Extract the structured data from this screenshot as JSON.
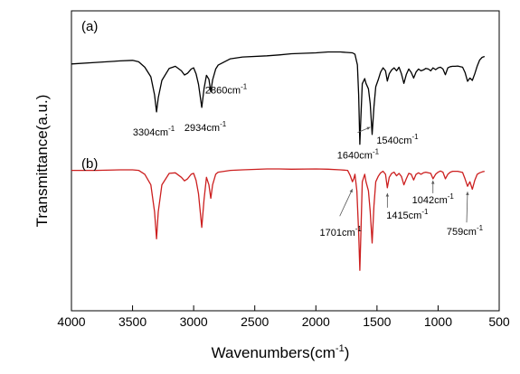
{
  "chart_data": {
    "type": "line",
    "xlabel": "Wavenumbers(cm",
    "xlabel_sup": "-1",
    "xlabel_close": ")",
    "ylabel": "Transmittance(a.u.)",
    "xlim": [
      4000,
      500
    ],
    "ylim": [
      0,
      1
    ],
    "x_reversed": true,
    "grid": false,
    "x_ticks": [
      4000,
      3500,
      3000,
      2500,
      2000,
      1500,
      1000,
      500
    ],
    "series": [
      {
        "label": "(a)",
        "color": "#000000",
        "x": [
          4000,
          3800,
          3600,
          3500,
          3450,
          3400,
          3350,
          3320,
          3304,
          3290,
          3260,
          3200,
          3150,
          3100,
          3075,
          3050,
          3020,
          3000,
          2980,
          2960,
          2934,
          2915,
          2895,
          2875,
          2860,
          2845,
          2820,
          2800,
          2700,
          2600,
          2400,
          2300,
          2200,
          2000,
          1900,
          1800,
          1700,
          1680,
          1660,
          1650,
          1640,
          1632,
          1620,
          1600,
          1590,
          1570,
          1555,
          1540,
          1525,
          1510,
          1490,
          1470,
          1450,
          1430,
          1415,
          1400,
          1380,
          1360,
          1340,
          1320,
          1300,
          1280,
          1260,
          1240,
          1220,
          1200,
          1180,
          1160,
          1140,
          1120,
          1100,
          1080,
          1060,
          1042,
          1020,
          1000,
          980,
          960,
          940,
          920,
          900,
          880,
          860,
          840,
          820,
          800,
          780,
          759,
          740,
          720,
          700,
          680,
          660,
          640,
          620
        ],
        "y": [
          0.823,
          0.828,
          0.833,
          0.835,
          0.83,
          0.812,
          0.78,
          0.72,
          0.663,
          0.71,
          0.768,
          0.808,
          0.815,
          0.8,
          0.786,
          0.792,
          0.806,
          0.81,
          0.79,
          0.755,
          0.678,
          0.74,
          0.785,
          0.772,
          0.73,
          0.77,
          0.806,
          0.819,
          0.84,
          0.846,
          0.85,
          0.853,
          0.857,
          0.86,
          0.863,
          0.863,
          0.86,
          0.855,
          0.82,
          0.72,
          0.555,
          0.64,
          0.757,
          0.774,
          0.758,
          0.74,
          0.69,
          0.588,
          0.68,
          0.747,
          0.77,
          0.796,
          0.81,
          0.8,
          0.766,
          0.79,
          0.803,
          0.81,
          0.8,
          0.812,
          0.79,
          0.758,
          0.788,
          0.806,
          0.795,
          0.776,
          0.796,
          0.806,
          0.8,
          0.803,
          0.808,
          0.806,
          0.8,
          0.81,
          0.804,
          0.81,
          0.812,
          0.806,
          0.787,
          0.81,
          0.814,
          0.815,
          0.815,
          0.816,
          0.814,
          0.812,
          0.795,
          0.765,
          0.776,
          0.768,
          0.79,
          0.816,
          0.836,
          0.845,
          0.848
        ]
      },
      {
        "label": "(b)",
        "color": "#cc1f1f",
        "x": [
          4000,
          3800,
          3600,
          3500,
          3450,
          3400,
          3350,
          3320,
          3304,
          3290,
          3260,
          3200,
          3150,
          3100,
          3075,
          3050,
          3020,
          3000,
          2980,
          2960,
          2934,
          2915,
          2895,
          2875,
          2860,
          2845,
          2820,
          2800,
          2700,
          2600,
          2400,
          2300,
          2200,
          2000,
          1900,
          1800,
          1740,
          1720,
          1701,
          1690,
          1680,
          1665,
          1650,
          1640,
          1632,
          1620,
          1600,
          1590,
          1570,
          1555,
          1540,
          1525,
          1510,
          1490,
          1470,
          1450,
          1430,
          1415,
          1400,
          1380,
          1360,
          1340,
          1320,
          1300,
          1280,
          1260,
          1240,
          1220,
          1200,
          1180,
          1160,
          1140,
          1120,
          1100,
          1080,
          1060,
          1042,
          1020,
          1000,
          980,
          960,
          940,
          920,
          900,
          880,
          860,
          840,
          820,
          800,
          780,
          759,
          740,
          720,
          700,
          680,
          660,
          640,
          620
        ],
        "y": [
          0.468,
          0.468,
          0.47,
          0.47,
          0.468,
          0.455,
          0.42,
          0.33,
          0.24,
          0.33,
          0.42,
          0.458,
          0.46,
          0.445,
          0.433,
          0.44,
          0.455,
          0.458,
          0.435,
          0.39,
          0.278,
          0.37,
          0.445,
          0.42,
          0.375,
          0.42,
          0.455,
          0.462,
          0.468,
          0.47,
          0.473,
          0.473,
          0.472,
          0.473,
          0.472,
          0.47,
          0.468,
          0.452,
          0.43,
          0.44,
          0.455,
          0.4,
          0.26,
          0.135,
          0.25,
          0.43,
          0.455,
          0.43,
          0.4,
          0.33,
          0.226,
          0.35,
          0.43,
          0.448,
          0.46,
          0.465,
          0.455,
          0.41,
          0.445,
          0.458,
          0.462,
          0.45,
          0.458,
          0.448,
          0.42,
          0.44,
          0.458,
          0.455,
          0.436,
          0.455,
          0.46,
          0.455,
          0.46,
          0.462,
          0.46,
          0.458,
          0.44,
          0.455,
          0.462,
          0.466,
          0.462,
          0.44,
          0.455,
          0.462,
          0.465,
          0.465,
          0.465,
          0.463,
          0.461,
          0.44,
          0.415,
          0.43,
          0.405,
          0.435,
          0.455,
          0.46,
          0.463,
          0.465
        ]
      }
    ],
    "annotations": [
      {
        "series": 0,
        "text": "3304cm",
        "sup": "-1",
        "x": 3304
      },
      {
        "series": 0,
        "text": "2934cm",
        "sup": "-1",
        "x": 2934
      },
      {
        "series": 0,
        "text": "2860cm",
        "sup": "-1",
        "x": 2860
      },
      {
        "series": 0,
        "text": "1640cm",
        "sup": "-1",
        "x": 1640
      },
      {
        "series": 0,
        "text": "1540cm",
        "sup": "-1",
        "x": 1540
      },
      {
        "series": 1,
        "text": "1701cm",
        "sup": "-1",
        "x": 1701
      },
      {
        "series": 1,
        "text": "1415cm",
        "sup": "-1",
        "x": 1415
      },
      {
        "series": 1,
        "text": "1042cm",
        "sup": "-1",
        "x": 1042
      },
      {
        "series": 1,
        "text": "759cm",
        "sup": "-1",
        "x": 759
      }
    ]
  }
}
